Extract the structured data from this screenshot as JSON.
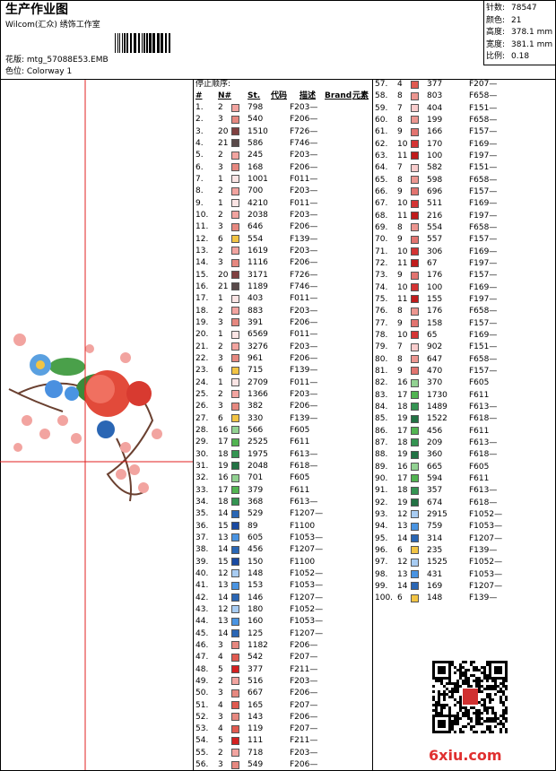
{
  "header": {
    "title": "生产作业图",
    "subtitle": "Wilcom(汇众) 绣饰工作室",
    "design": "花版: mtg_57088E53.EMB",
    "colorway": "色位: Colorway 1"
  },
  "stats": [
    {
      "label": "针数:",
      "value": "78547"
    },
    {
      "label": "颜色:",
      "value": "21"
    },
    {
      "label": "高度:",
      "value": "378.1 mm"
    },
    {
      "label": "宽度:",
      "value": "381.1 mm"
    },
    {
      "label": "比例:",
      "value": "0.18"
    }
  ],
  "stop_order": {
    "title": "停止顺序:",
    "columns": [
      "#",
      "N#",
      "St.",
      "代码",
      "描述",
      "Brand",
      "元素"
    ],
    "needle_colors": {
      "1": "#fbe4e4",
      "2": "#f2a4a0",
      "3": "#e68880",
      "4": "#e05a50",
      "5": "#d42020",
      "6": "#f2c444",
      "7": "#f8cccc",
      "8": "#ec9690",
      "9": "#e27470",
      "10": "#d43434",
      "11": "#c01c1c",
      "12": "#a8ccf2",
      "13": "#4a94e2",
      "14": "#2a66b4",
      "15": "#1a4aa2",
      "16": "#92d292",
      "17": "#52b452",
      "18": "#349452",
      "19": "#227244",
      "20": "#804040",
      "21": "#5a4a4a"
    },
    "rows": [
      [
        "1.",
        "2",
        "798",
        "F203—"
      ],
      [
        "2.",
        "3",
        "540",
        "F206—"
      ],
      [
        "3.",
        "20",
        "1510",
        "F726—"
      ],
      [
        "4.",
        "21",
        "586",
        "F746—"
      ],
      [
        "5.",
        "2",
        "245",
        "F203—"
      ],
      [
        "6.",
        "3",
        "168",
        "F206—"
      ],
      [
        "7.",
        "1",
        "1001",
        "F011—"
      ],
      [
        "8.",
        "2",
        "700",
        "F203—"
      ],
      [
        "9.",
        "1",
        "4210",
        "F011—"
      ],
      [
        "10.",
        "2",
        "2038",
        "F203—"
      ],
      [
        "11.",
        "3",
        "646",
        "F206—"
      ],
      [
        "12.",
        "6",
        "554",
        "F139—"
      ],
      [
        "13.",
        "2",
        "1619",
        "F203—"
      ],
      [
        "14.",
        "3",
        "1116",
        "F206—"
      ],
      [
        "15.",
        "20",
        "3171",
        "F726—"
      ],
      [
        "16.",
        "21",
        "1189",
        "F746—"
      ],
      [
        "17.",
        "1",
        "403",
        "F011—"
      ],
      [
        "18.",
        "2",
        "883",
        "F203—"
      ],
      [
        "19.",
        "3",
        "391",
        "F206—"
      ],
      [
        "20.",
        "1",
        "6569",
        "F011—"
      ],
      [
        "21.",
        "2",
        "3276",
        "F203—"
      ],
      [
        "22.",
        "3",
        "961",
        "F206—"
      ],
      [
        "23.",
        "6",
        "715",
        "F139—"
      ],
      [
        "24.",
        "1",
        "2709",
        "F011—"
      ],
      [
        "25.",
        "2",
        "1366",
        "F203—"
      ],
      [
        "26.",
        "3",
        "382",
        "F206—"
      ],
      [
        "27.",
        "6",
        "330",
        "F139—"
      ],
      [
        "28.",
        "16",
        "566",
        "F605"
      ],
      [
        "29.",
        "17",
        "2525",
        "F611"
      ],
      [
        "30.",
        "18",
        "1975",
        "F613—"
      ],
      [
        "31.",
        "19",
        "2048",
        "F618—"
      ],
      [
        "32.",
        "16",
        "701",
        "F605"
      ],
      [
        "33.",
        "17",
        "379",
        "F611"
      ],
      [
        "34.",
        "18",
        "368",
        "F613—"
      ],
      [
        "35.",
        "14",
        "529",
        "F1207—"
      ],
      [
        "36.",
        "15",
        "89",
        "F1100"
      ],
      [
        "37.",
        "13",
        "605",
        "F1053—"
      ],
      [
        "38.",
        "14",
        "456",
        "F1207—"
      ],
      [
        "39.",
        "15",
        "150",
        "F1100"
      ],
      [
        "40.",
        "12",
        "148",
        "F1052—"
      ],
      [
        "41.",
        "13",
        "153",
        "F1053—"
      ],
      [
        "42.",
        "14",
        "146",
        "F1207—"
      ],
      [
        "43.",
        "12",
        "180",
        "F1052—"
      ],
      [
        "44.",
        "13",
        "160",
        "F1053—"
      ],
      [
        "45.",
        "14",
        "125",
        "F1207—"
      ],
      [
        "46.",
        "3",
        "1182",
        "F206—"
      ],
      [
        "47.",
        "4",
        "542",
        "F207—"
      ],
      [
        "48.",
        "5",
        "377",
        "F211—"
      ],
      [
        "49.",
        "2",
        "516",
        "F203—"
      ],
      [
        "50.",
        "3",
        "667",
        "F206—"
      ],
      [
        "51.",
        "4",
        "165",
        "F207—"
      ],
      [
        "52.",
        "3",
        "143",
        "F206—"
      ],
      [
        "53.",
        "4",
        "119",
        "F207—"
      ],
      [
        "54.",
        "5",
        "111",
        "F211—"
      ],
      [
        "55.",
        "2",
        "718",
        "F203—"
      ],
      [
        "56.",
        "3",
        "549",
        "F206—"
      ],
      [
        "57.",
        "4",
        "377",
        "F207—"
      ],
      [
        "58.",
        "8",
        "803",
        "F658—"
      ],
      [
        "59.",
        "7",
        "404",
        "F151—"
      ],
      [
        "60.",
        "8",
        "199",
        "F658—"
      ],
      [
        "61.",
        "9",
        "166",
        "F157—"
      ],
      [
        "62.",
        "10",
        "170",
        "F169—"
      ],
      [
        "63.",
        "11",
        "100",
        "F197—"
      ],
      [
        "64.",
        "7",
        "582",
        "F151—"
      ],
      [
        "65.",
        "8",
        "598",
        "F658—"
      ],
      [
        "66.",
        "9",
        "696",
        "F157—"
      ],
      [
        "67.",
        "10",
        "511",
        "F169—"
      ],
      [
        "68.",
        "11",
        "216",
        "F197—"
      ],
      [
        "69.",
        "8",
        "554",
        "F658—"
      ],
      [
        "70.",
        "9",
        "557",
        "F157—"
      ],
      [
        "71.",
        "10",
        "306",
        "F169—"
      ],
      [
        "72.",
        "11",
        "67",
        "F197—"
      ],
      [
        "73.",
        "9",
        "176",
        "F157—"
      ],
      [
        "74.",
        "10",
        "100",
        "F169—"
      ],
      [
        "75.",
        "11",
        "155",
        "F197—"
      ],
      [
        "76.",
        "8",
        "176",
        "F658—"
      ],
      [
        "77.",
        "9",
        "158",
        "F157—"
      ],
      [
        "78.",
        "10",
        "65",
        "F169—"
      ],
      [
        "79.",
        "7",
        "902",
        "F151—"
      ],
      [
        "80.",
        "8",
        "647",
        "F658—"
      ],
      [
        "81.",
        "9",
        "470",
        "F157—"
      ],
      [
        "82.",
        "16",
        "370",
        "F605"
      ],
      [
        "83.",
        "17",
        "1730",
        "F611"
      ],
      [
        "84.",
        "18",
        "1489",
        "F613—"
      ],
      [
        "85.",
        "19",
        "1522",
        "F618—"
      ],
      [
        "86.",
        "17",
        "456",
        "F611"
      ],
      [
        "87.",
        "18",
        "209",
        "F613—"
      ],
      [
        "88.",
        "19",
        "360",
        "F618—"
      ],
      [
        "89.",
        "16",
        "665",
        "F605"
      ],
      [
        "90.",
        "17",
        "594",
        "F611"
      ],
      [
        "91.",
        "18",
        "357",
        "F613—"
      ],
      [
        "92.",
        "19",
        "674",
        "F618—"
      ],
      [
        "93.",
        "12",
        "2915",
        "F1052—"
      ],
      [
        "94.",
        "13",
        "759",
        "F1053—"
      ],
      [
        "95.",
        "14",
        "314",
        "F1207—"
      ],
      [
        "96.",
        "6",
        "235",
        "F139—"
      ],
      [
        "97.",
        "12",
        "1525",
        "F1052—"
      ],
      [
        "98.",
        "13",
        "431",
        "F1053—"
      ],
      [
        "99.",
        "14",
        "169",
        "F1207—"
      ],
      [
        "100.",
        "6",
        "148",
        "F139—"
      ]
    ]
  },
  "watermark": "6xiu.com"
}
